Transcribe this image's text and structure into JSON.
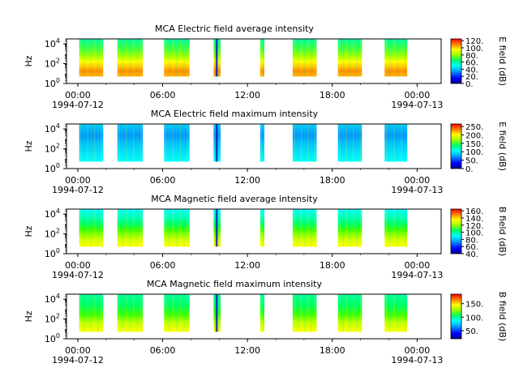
{
  "chart_data": [
    {
      "type": "heatmap",
      "title": "MCA  Electric field average intensity",
      "ylabel": "Hz",
      "ylim_log10": [
        0,
        4.5
      ],
      "yticks": [
        {
          "base": "10",
          "exp": "0",
          "value": 1
        },
        {
          "base": "10",
          "exp": "2",
          "value": 100
        },
        {
          "base": "10",
          "exp": "4",
          "value": 10000
        }
      ],
      "xticks": [
        "00:00",
        "06:00",
        "12:00",
        "18:00",
        "00:00"
      ],
      "xdates": [
        "1994-07-12",
        "1994-07-13"
      ],
      "colorbar": {
        "label": "E field (dB)",
        "min": 0,
        "max": 125,
        "ticks": [
          "0.",
          "20.",
          "40.",
          "60.",
          "80.",
          "100.",
          "120."
        ],
        "tick_values": [
          0,
          20,
          40,
          60,
          80,
          100,
          120
        ]
      },
      "segments_hours": [
        [
          0.1,
          1.8
        ],
        [
          2.8,
          4.6
        ],
        [
          6.1,
          7.9
        ],
        [
          9.6,
          10.1
        ],
        [
          12.9,
          13.2
        ],
        [
          15.2,
          16.9
        ],
        [
          18.4,
          20.1
        ],
        [
          21.7,
          23.3
        ]
      ],
      "style": "e-avg"
    },
    {
      "type": "heatmap",
      "title": "MCA  Electric field maximum intensity",
      "ylabel": "Hz",
      "ylim_log10": [
        0,
        4.5
      ],
      "yticks": [
        {
          "base": "10",
          "exp": "0",
          "value": 1
        },
        {
          "base": "10",
          "exp": "2",
          "value": 100
        },
        {
          "base": "10",
          "exp": "4",
          "value": 10000
        }
      ],
      "xticks": [
        "00:00",
        "06:00",
        "12:00",
        "18:00",
        "00:00"
      ],
      "xdates": [
        "1994-07-12",
        "1994-07-13"
      ],
      "colorbar": {
        "label": "E field (dB)",
        "min": 0,
        "max": 265,
        "ticks": [
          "0.",
          "50.",
          "100.",
          "150.",
          "200.",
          "250."
        ],
        "tick_values": [
          0,
          50,
          100,
          150,
          200,
          250
        ]
      },
      "segments_hours": [
        [
          0.1,
          1.8
        ],
        [
          2.8,
          4.6
        ],
        [
          6.1,
          7.9
        ],
        [
          9.6,
          10.1
        ],
        [
          12.9,
          13.2
        ],
        [
          15.2,
          16.9
        ],
        [
          18.4,
          20.1
        ],
        [
          21.7,
          23.3
        ]
      ],
      "style": "e-max"
    },
    {
      "type": "heatmap",
      "title": "MCA  Magnetic field average intensity",
      "ylabel": "Hz",
      "ylim_log10": [
        0,
        4.5
      ],
      "yticks": [
        {
          "base": "10",
          "exp": "0",
          "value": 1
        },
        {
          "base": "10",
          "exp": "2",
          "value": 100
        },
        {
          "base": "10",
          "exp": "4",
          "value": 10000
        }
      ],
      "xticks": [
        "00:00",
        "06:00",
        "12:00",
        "18:00",
        "00:00"
      ],
      "xdates": [
        "1994-07-12",
        "1994-07-13"
      ],
      "colorbar": {
        "label": "B field (dB)",
        "min": 40,
        "max": 165,
        "ticks": [
          "40.",
          "60.",
          "80.",
          "100.",
          "120.",
          "140.",
          "160."
        ],
        "tick_values": [
          40,
          60,
          80,
          100,
          120,
          140,
          160
        ]
      },
      "segments_hours": [
        [
          0.1,
          1.8
        ],
        [
          2.8,
          4.6
        ],
        [
          6.1,
          7.9
        ],
        [
          9.6,
          10.1
        ],
        [
          12.9,
          13.2
        ],
        [
          15.2,
          16.9
        ],
        [
          18.4,
          20.1
        ],
        [
          21.7,
          23.3
        ]
      ],
      "style": "b-avg"
    },
    {
      "type": "heatmap",
      "title": "MCA  Magnetic field maximum intensity",
      "ylabel": "Hz",
      "ylim_log10": [
        0,
        4.5
      ],
      "yticks": [
        {
          "base": "10",
          "exp": "0",
          "value": 1
        },
        {
          "base": "10",
          "exp": "2",
          "value": 100
        },
        {
          "base": "10",
          "exp": "4",
          "value": 10000
        }
      ],
      "xticks": [
        "00:00",
        "06:00",
        "12:00",
        "18:00",
        "00:00"
      ],
      "xdates": [
        "1994-07-12",
        "1994-07-13"
      ],
      "colorbar": {
        "label": "B field (dB)",
        "min": 20,
        "max": 185,
        "ticks": [
          "50.",
          "100.",
          "150."
        ],
        "tick_values": [
          50,
          100,
          150
        ]
      },
      "segments_hours": [
        [
          0.1,
          1.8
        ],
        [
          2.8,
          4.6
        ],
        [
          6.1,
          7.9
        ],
        [
          9.6,
          10.1
        ],
        [
          12.9,
          13.2
        ],
        [
          15.2,
          16.9
        ],
        [
          18.4,
          20.1
        ],
        [
          21.7,
          23.3
        ]
      ],
      "style": "b-max"
    }
  ]
}
